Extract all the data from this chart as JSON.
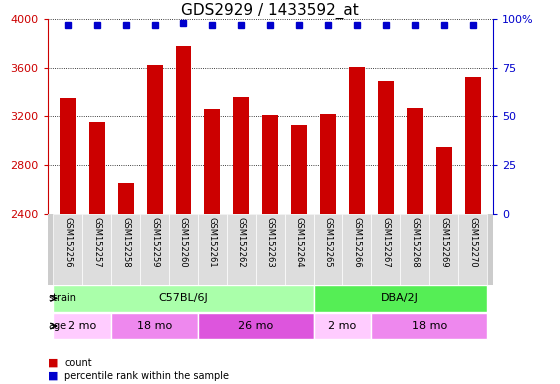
{
  "title": "GDS2929 / 1433592_at",
  "samples": [
    "GSM152256",
    "GSM152257",
    "GSM152258",
    "GSM152259",
    "GSM152260",
    "GSM152261",
    "GSM152262",
    "GSM152263",
    "GSM152264",
    "GSM152265",
    "GSM152266",
    "GSM152267",
    "GSM152268",
    "GSM152269",
    "GSM152270"
  ],
  "counts": [
    3350,
    3155,
    2650,
    3620,
    3780,
    3260,
    3360,
    3210,
    3130,
    3220,
    3610,
    3490,
    3270,
    2950,
    3520
  ],
  "percentiles": [
    97,
    97,
    97,
    97,
    98,
    97,
    97,
    97,
    97,
    97,
    97,
    97,
    97,
    97,
    97
  ],
  "bar_color": "#cc0000",
  "dot_color": "#0000cc",
  "ylim_left": [
    2400,
    4000
  ],
  "ylim_right": [
    0,
    100
  ],
  "yticks_left": [
    2400,
    2800,
    3200,
    3600,
    4000
  ],
  "yticks_right": [
    0,
    25,
    50,
    75,
    100
  ],
  "strain_groups": [
    {
      "label": "C57BL/6J",
      "start": 0,
      "end": 9,
      "color": "#aaffaa"
    },
    {
      "label": "DBA/2J",
      "start": 9,
      "end": 15,
      "color": "#55ee55"
    }
  ],
  "age_groups": [
    {
      "label": "2 mo",
      "start": 0,
      "end": 2,
      "color": "#ffccff"
    },
    {
      "label": "18 mo",
      "start": 2,
      "end": 5,
      "color": "#dd77dd"
    },
    {
      "label": "26 mo",
      "start": 5,
      "end": 9,
      "color": "#cc55cc"
    },
    {
      "label": "2 mo",
      "start": 9,
      "end": 11,
      "color": "#ffccff"
    },
    {
      "label": "18 mo",
      "start": 11,
      "end": 15,
      "color": "#dd77dd"
    }
  ],
  "bg_color": "#ffffff",
  "label_fontsize": 8,
  "title_fontsize": 11
}
